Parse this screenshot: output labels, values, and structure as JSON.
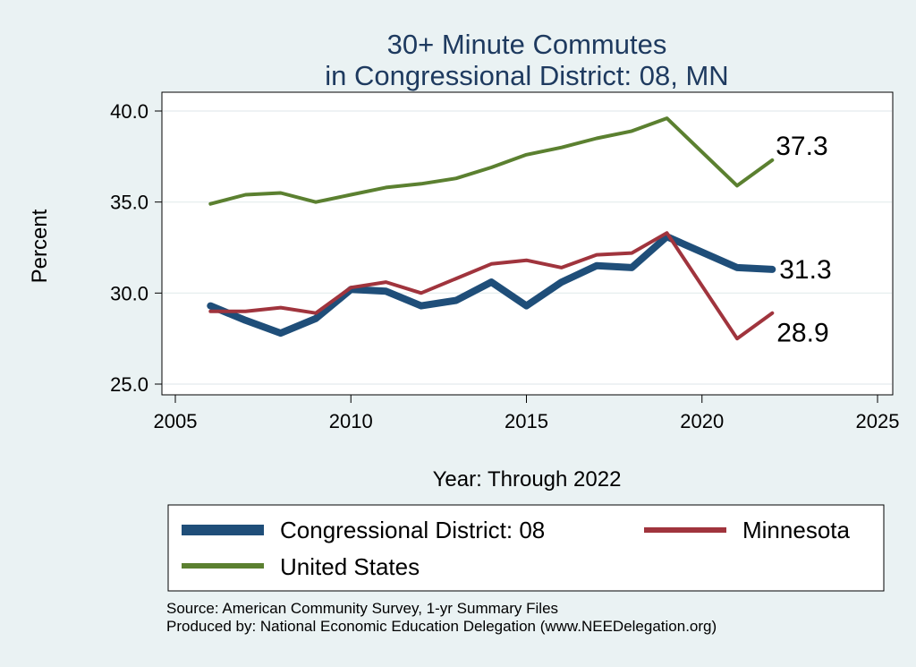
{
  "chart_data": {
    "type": "line",
    "title_lines": [
      "30+ Minute Commutes",
      "in Congressional District:  08, MN"
    ],
    "xlabel": "Year: Through 2022",
    "ylabel": "Percent",
    "xlim": [
      2005,
      2025
    ],
    "ylim": [
      25,
      40
    ],
    "x_ticks": [
      2005,
      2010,
      2015,
      2020,
      2025
    ],
    "y_ticks": [
      25,
      30,
      35,
      40
    ],
    "y_tick_labels": [
      "25.0",
      "30.0",
      "35.0",
      "40.0"
    ],
    "grid": "horizontal",
    "legend_position": "bottom",
    "series": [
      {
        "name": "Congressional District:  08",
        "color": "#1f4e79",
        "x": [
          2006,
          2007,
          2008,
          2009,
          2010,
          2011,
          2012,
          2013,
          2014,
          2015,
          2016,
          2017,
          2018,
          2019,
          2021,
          2022
        ],
        "y": [
          29.3,
          28.5,
          27.8,
          28.6,
          30.2,
          30.1,
          29.3,
          29.6,
          30.6,
          29.3,
          30.6,
          31.5,
          31.4,
          33.1,
          31.4,
          31.3
        ],
        "end_label": "31.3"
      },
      {
        "name": "Minnesota",
        "color": "#a0343d",
        "x": [
          2006,
          2007,
          2008,
          2009,
          2010,
          2011,
          2012,
          2013,
          2014,
          2015,
          2016,
          2017,
          2018,
          2019,
          2021,
          2022
        ],
        "y": [
          29.0,
          29.0,
          29.2,
          28.9,
          30.3,
          30.6,
          30.0,
          30.8,
          31.6,
          31.8,
          31.4,
          32.1,
          32.2,
          33.3,
          27.5,
          28.9
        ],
        "end_label": "28.9"
      },
      {
        "name": "United States",
        "color": "#5b8030",
        "x": [
          2006,
          2007,
          2008,
          2009,
          2010,
          2011,
          2012,
          2013,
          2014,
          2015,
          2016,
          2017,
          2018,
          2019,
          2021,
          2022
        ],
        "y": [
          34.9,
          35.4,
          35.5,
          35.0,
          35.4,
          35.8,
          36.0,
          36.3,
          36.9,
          37.6,
          38.0,
          38.5,
          38.9,
          39.6,
          35.9,
          37.3
        ],
        "end_label": "37.3"
      }
    ]
  },
  "source_lines": [
    "Source: American Community Survey, 1-yr Summary Files",
    "Produced by: National Economic Education Delegation (www.NEEDelegation.org)"
  ]
}
